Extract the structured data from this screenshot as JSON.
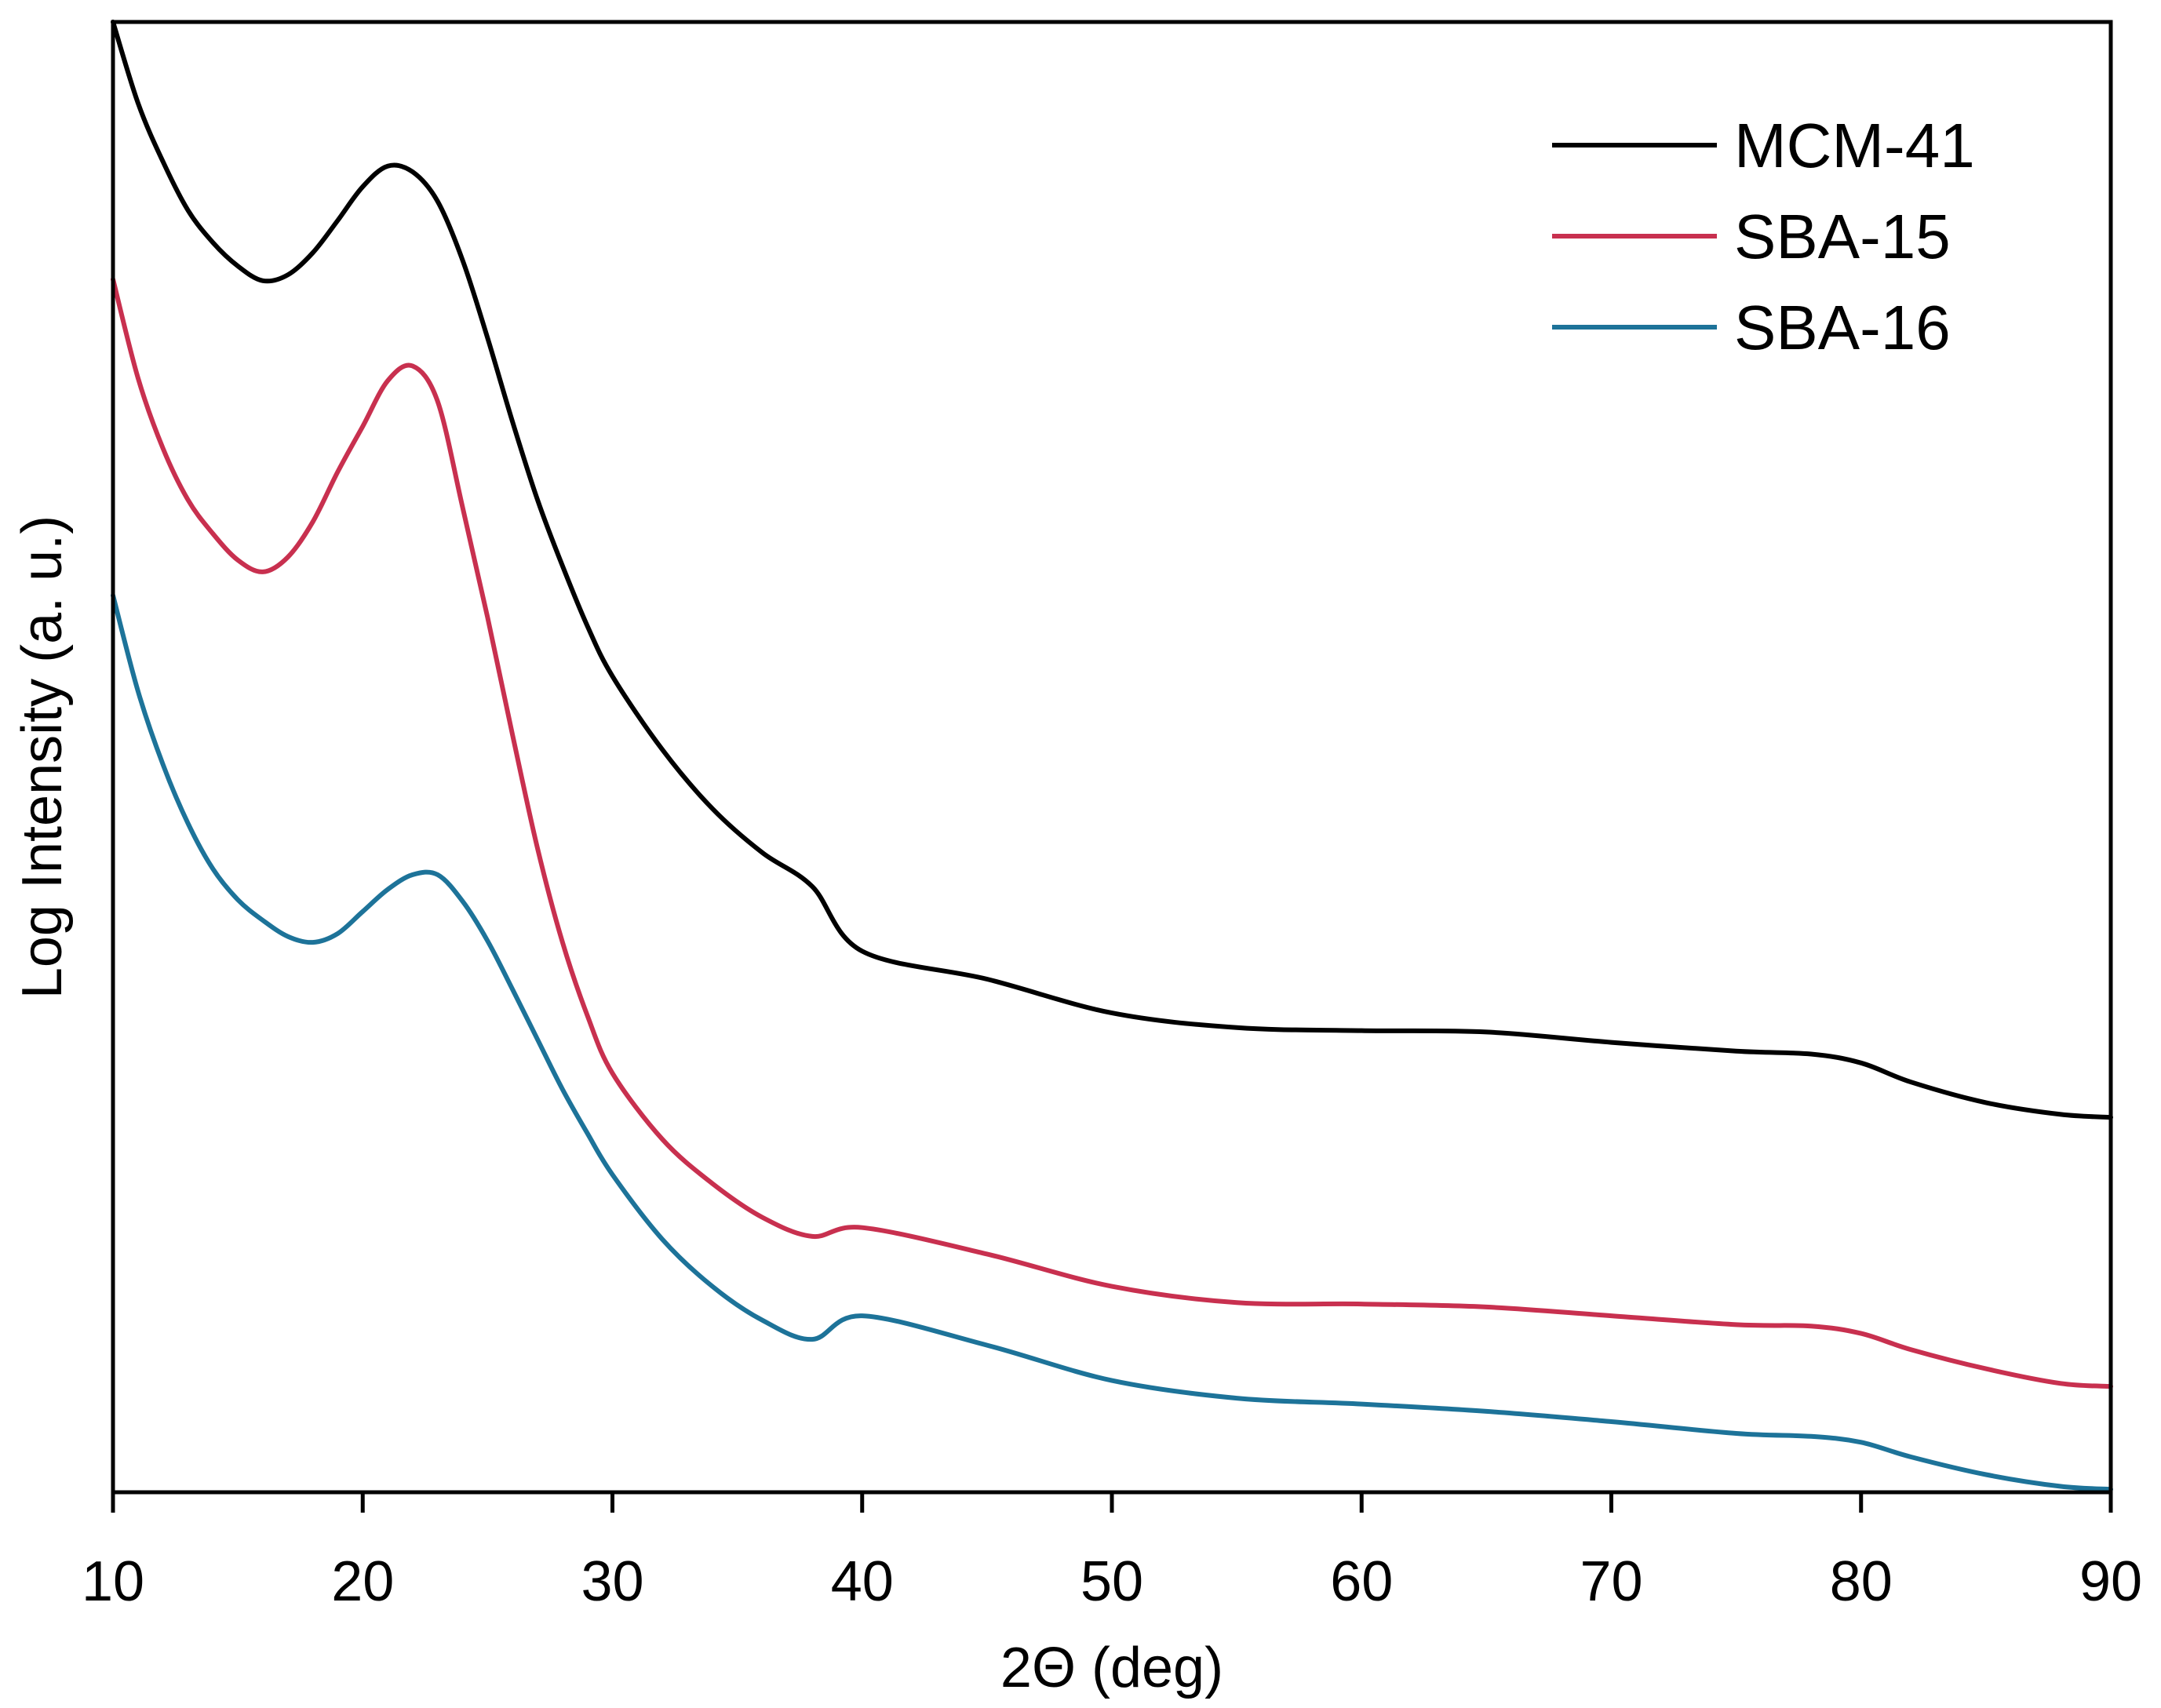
{
  "chart_data": {
    "type": "line",
    "title": "",
    "xlabel": "2Θ (deg)",
    "ylabel": "Log Intensity (a. u.)",
    "xlim": [
      10,
      90
    ],
    "ylim": [
      0,
      100
    ],
    "xticks": [
      "10",
      "20",
      "30",
      "40",
      "50",
      "60",
      "70",
      "80",
      "90"
    ],
    "yticks": [],
    "grid": false,
    "legend": "top-right",
    "series": [
      {
        "name": "MCM-41",
        "color": "#000000",
        "x": [
          10,
          11,
          12,
          13,
          14,
          15,
          16,
          17,
          18,
          19,
          20,
          21,
          22,
          23,
          24,
          25,
          26,
          27,
          28,
          29,
          30,
          32,
          34,
          36,
          38,
          40,
          45,
          50,
          55,
          60,
          65,
          70,
          75,
          78,
          80,
          82,
          85,
          88,
          90
        ],
        "y": [
          100,
          94.5,
          90.5,
          87.2,
          85.0,
          83.4,
          82.4,
          82.8,
          84.3,
          86.5,
          88.8,
          90.2,
          89.8,
          87.8,
          83.8,
          78.5,
          72.8,
          67.5,
          63.0,
          58.9,
          55.5,
          50.5,
          46.5,
          43.5,
          41.2,
          36.8,
          34.9,
          32.6,
          31.6,
          31.4,
          31.3,
          30.6,
          30.0,
          29.8,
          29.2,
          27.9,
          26.5,
          25.7,
          25.5
        ]
      },
      {
        "name": "SBA-15",
        "color": "#c8304f",
        "x": [
          10,
          11,
          12,
          13,
          14,
          15,
          16,
          17,
          18,
          19,
          20,
          21,
          22,
          23,
          24,
          25,
          26,
          27,
          28,
          29,
          30,
          32,
          34,
          36,
          38,
          40,
          45,
          50,
          55,
          60,
          65,
          70,
          75,
          78,
          80,
          82,
          85,
          88,
          90
        ],
        "y": [
          82.5,
          75.8,
          71.0,
          67.5,
          65.2,
          63.4,
          62.6,
          63.6,
          66.0,
          69.4,
          72.5,
          75.6,
          76.6,
          74.2,
          67.0,
          59.5,
          51.5,
          43.8,
          37.4,
          32.4,
          28.5,
          24.0,
          21.0,
          18.7,
          17.4,
          18.0,
          16.2,
          14.0,
          12.9,
          12.8,
          12.6,
          12.0,
          11.4,
          11.3,
          10.8,
          9.7,
          8.4,
          7.4,
          7.2
        ]
      },
      {
        "name": "SBA-16",
        "color": "#1d7399",
        "x": [
          10,
          11,
          12,
          13,
          14,
          15,
          16,
          17,
          18,
          19,
          20,
          21,
          22,
          23,
          24,
          25,
          26,
          27,
          28,
          29,
          30,
          32,
          34,
          36,
          38,
          40,
          45,
          50,
          55,
          60,
          65,
          70,
          75,
          78,
          80,
          82,
          85,
          88,
          90
        ],
        "y": [
          61.0,
          54.5,
          49.5,
          45.5,
          42.4,
          40.3,
          38.9,
          37.8,
          37.4,
          38.0,
          39.5,
          41.0,
          42.0,
          42.0,
          40.2,
          37.5,
          34.2,
          30.8,
          27.4,
          24.4,
          21.6,
          17.2,
          14.0,
          11.7,
          10.4,
          12.0,
          10.0,
          7.6,
          6.4,
          6.0,
          5.5,
          4.8,
          4.0,
          3.8,
          3.4,
          2.4,
          1.2,
          0.4,
          0.2
        ]
      }
    ]
  }
}
